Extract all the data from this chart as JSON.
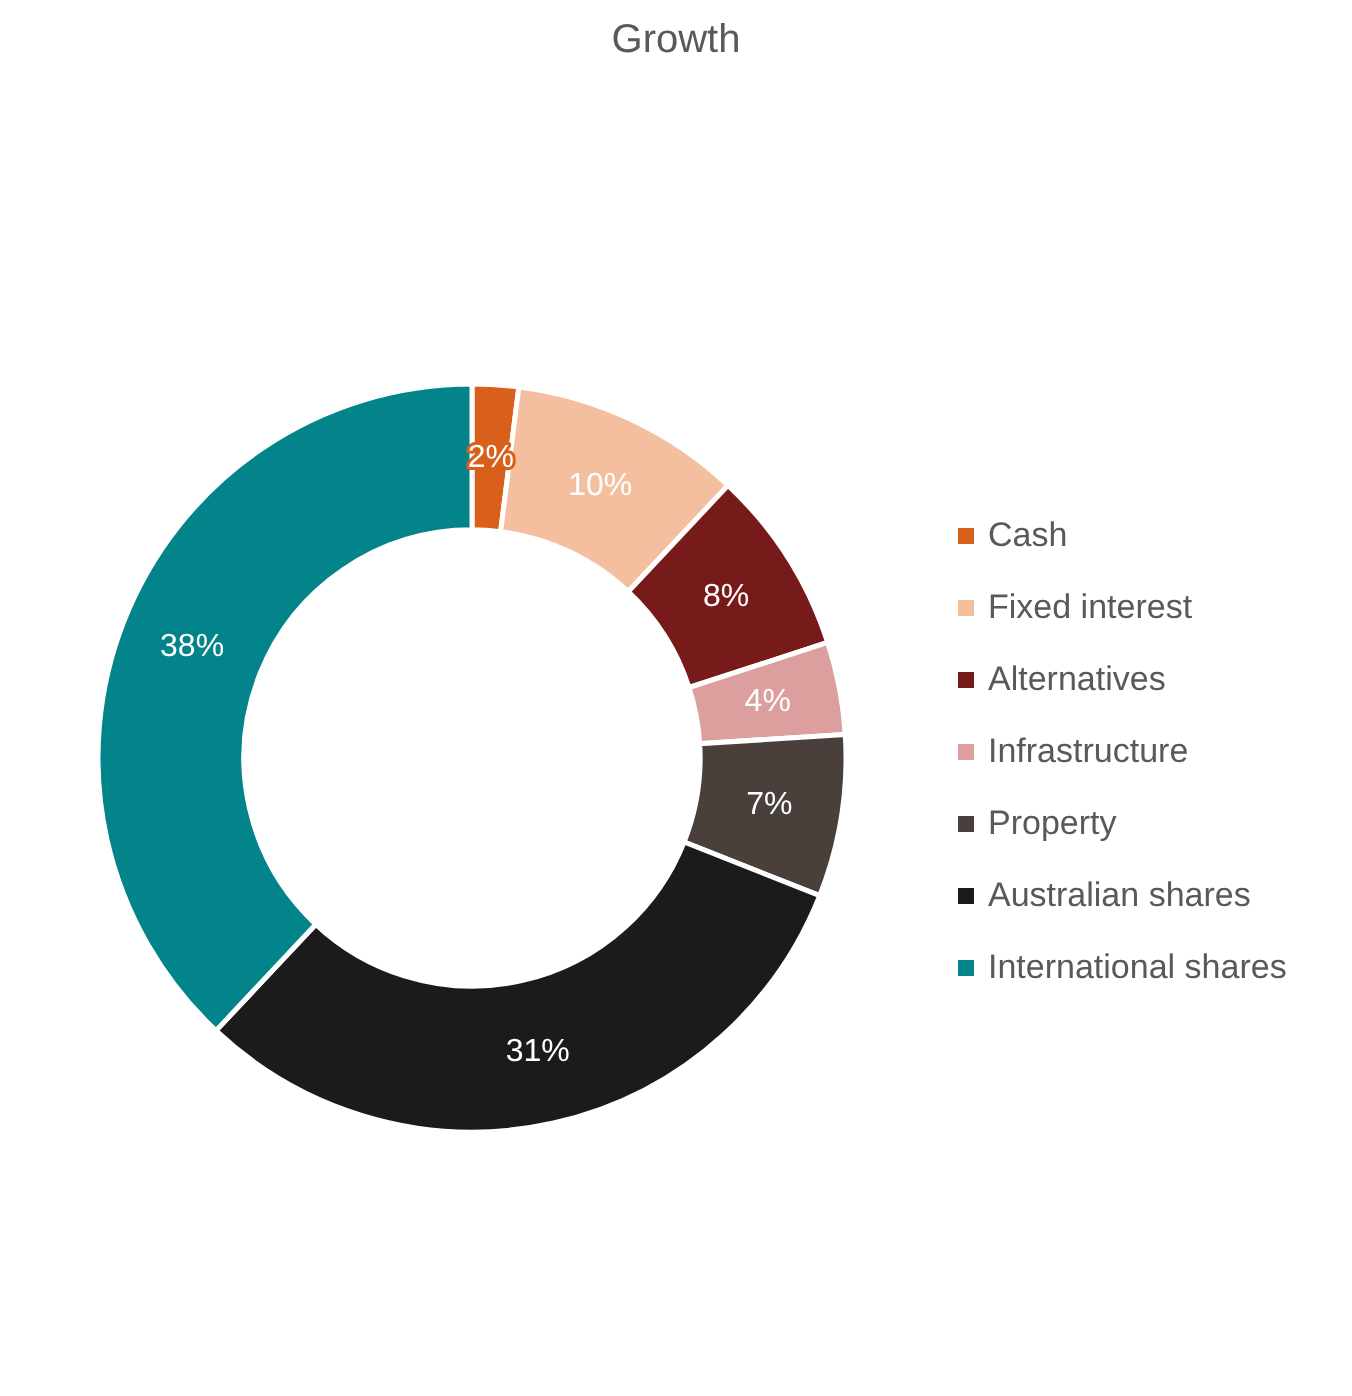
{
  "chart_data": {
    "type": "donut",
    "title": "Growth",
    "categories": [
      "Cash",
      "Fixed interest",
      "Alternatives",
      "Infrastructure",
      "Property",
      "Australian shares",
      "International shares"
    ],
    "values": [
      2,
      10,
      8,
      4,
      7,
      31,
      38
    ],
    "colors": [
      "#d9601a",
      "#f4bf9f",
      "#771a1a",
      "#dc9f9e",
      "#4a403b",
      "#1a1b1a",
      "#03838a"
    ],
    "value_labels": [
      "2%",
      "10%",
      "8%",
      "4%",
      "7%",
      "31%",
      "38%"
    ],
    "legend": "right"
  }
}
